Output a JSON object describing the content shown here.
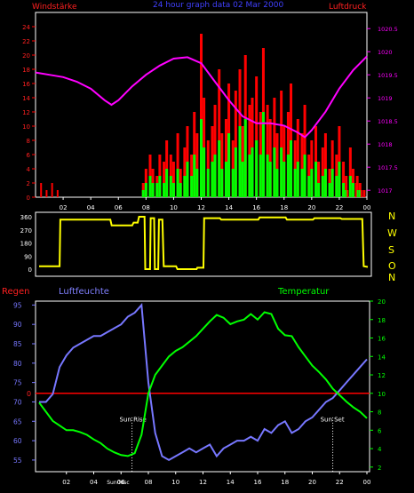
{
  "chart_data": [
    {
      "type": "bar",
      "title": "24 hour graph data  02 Mar 2000",
      "left_axis_label": "Windstärke",
      "right_axis_label": "Luftdruck",
      "x_ticks": [
        "02",
        "04",
        "06",
        "08",
        "10",
        "12",
        "14",
        "16",
        "18",
        "20",
        "22",
        "00"
      ],
      "wind_ylim": [
        0,
        26
      ],
      "wind_yticks": [
        "0",
        "2",
        "4",
        "6",
        "8",
        "10",
        "12",
        "14",
        "16",
        "18",
        "20",
        "22",
        "24"
      ],
      "pressure_ylim": [
        1016.85,
        1020.85
      ],
      "pressure_yticks": [
        "1017",
        "1017.5",
        "1018",
        "1018.5",
        "1019",
        "1019.5",
        "1020",
        "1020.5"
      ],
      "series": [
        {
          "name": "gust",
          "color": "#ff0000",
          "x": [
            7.8,
            8.0,
            8.3,
            8.5,
            8.8,
            9.0,
            9.3,
            9.5,
            9.8,
            10.0,
            10.3,
            10.5,
            10.8,
            11.0,
            11.3,
            11.5,
            11.7,
            12.0,
            12.2,
            12.5,
            12.8,
            13.0,
            13.3,
            13.5,
            13.8,
            14.0,
            14.3,
            14.5,
            14.8,
            15.0,
            15.2,
            15.5,
            15.7,
            16.0,
            16.3,
            16.5,
            16.8,
            17.0,
            17.3,
            17.5,
            17.8,
            18.0,
            18.3,
            18.5,
            18.8,
            19.0,
            19.3,
            19.5,
            19.8,
            20.0,
            20.3,
            20.5,
            20.8,
            21.0,
            21.3,
            21.5,
            21.8,
            22.0,
            22.3,
            22.5,
            22.8,
            23.0,
            23.3,
            23.5,
            23.8
          ],
          "values": [
            2,
            4,
            6,
            4,
            3,
            6,
            5,
            8,
            6,
            5,
            9,
            4,
            7,
            10,
            6,
            12,
            9,
            23,
            14,
            8,
            10,
            13,
            18,
            9,
            11,
            16,
            8,
            15,
            18,
            10,
            20,
            13,
            14,
            17,
            12,
            21,
            13,
            11,
            14,
            9,
            15,
            10,
            12,
            16,
            8,
            11,
            9,
            13,
            6,
            8,
            10,
            5,
            7,
            9,
            4,
            8,
            6,
            10,
            5,
            3,
            7,
            4,
            3,
            2,
            1
          ]
        },
        {
          "name": "average",
          "color": "#00ff00",
          "x": [
            7.8,
            8.0,
            8.3,
            8.5,
            8.8,
            9.0,
            9.3,
            9.5,
            9.8,
            10.0,
            10.3,
            10.5,
            10.8,
            11.0,
            11.3,
            11.5,
            11.7,
            12.0,
            12.2,
            12.5,
            12.8,
            13.0,
            13.3,
            13.5,
            13.8,
            14.0,
            14.3,
            14.5,
            14.8,
            15.0,
            15.2,
            15.5,
            15.7,
            16.0,
            16.3,
            16.5,
            16.8,
            17.0,
            17.3,
            17.5,
            17.8,
            18.0,
            18.3,
            18.5,
            18.8,
            19.0,
            19.3,
            19.5,
            19.8,
            20.0,
            20.3,
            20.5,
            20.8,
            21.0,
            21.3,
            21.5,
            21.8,
            22.0,
            22.3,
            22.5,
            22.8,
            23.0,
            23.3,
            23.5,
            23.8
          ],
          "values": [
            1,
            2,
            3,
            2,
            2,
            3,
            2,
            4,
            3,
            2,
            4,
            2,
            3,
            5,
            3,
            6,
            4,
            11,
            7,
            4,
            5,
            6,
            8,
            4,
            5,
            9,
            4,
            7,
            10,
            5,
            11,
            6,
            7,
            8,
            6,
            12,
            6,
            5,
            7,
            4,
            7,
            5,
            6,
            8,
            4,
            5,
            4,
            6,
            3,
            4,
            5,
            2,
            3,
            4,
            2,
            4,
            3,
            5,
            2,
            1,
            3,
            2,
            1,
            1,
            0
          ]
        },
        {
          "name": "pressure",
          "color": "#ff00ff",
          "x": [
            0,
            1,
            2,
            3,
            4,
            5,
            5.5,
            6,
            7,
            8,
            9,
            10,
            11,
            12,
            13,
            14,
            15,
            16,
            17,
            18,
            19,
            19.5,
            20,
            21,
            22,
            23,
            24
          ],
          "values": [
            1019.55,
            1019.5,
            1019.45,
            1019.35,
            1019.2,
            1018.95,
            1018.85,
            1018.95,
            1019.25,
            1019.5,
            1019.7,
            1019.85,
            1019.88,
            1019.75,
            1019.35,
            1018.95,
            1018.6,
            1018.45,
            1018.45,
            1018.4,
            1018.25,
            1018.15,
            1018.3,
            1018.7,
            1019.2,
            1019.6,
            1019.9
          ]
        }
      ]
    },
    {
      "type": "line",
      "right_labels": [
        "N",
        "W",
        "S",
        "O",
        "N"
      ],
      "ylim": [
        0,
        360
      ],
      "yticks": [
        "0",
        "90",
        "180",
        "270",
        "360"
      ],
      "series": [
        {
          "name": "wind direction",
          "color": "#ffff00",
          "x": [
            0,
            1.5,
            1.55,
            5.2,
            5.3,
            6.8,
            6.9,
            7.2,
            7.3,
            7.7,
            7.75,
            8.1,
            8.15,
            8.4,
            8.45,
            8.7,
            8.75,
            9.0,
            9.1,
            10.0,
            10.1,
            11.5,
            11.55,
            12.0,
            12.05,
            13.2,
            13.3,
            16.0,
            16.1,
            18.0,
            18.1,
            20.0,
            20.1,
            22.0,
            22.1,
            23.6,
            23.7,
            24.0
          ],
          "values": [
            20,
            20,
            340,
            340,
            300,
            300,
            320,
            320,
            360,
            360,
            0,
            0,
            350,
            350,
            0,
            0,
            340,
            340,
            20,
            20,
            0,
            0,
            10,
            10,
            350,
            350,
            340,
            340,
            355,
            355,
            340,
            340,
            350,
            350,
            345,
            345,
            20,
            15
          ]
        }
      ]
    },
    {
      "type": "line",
      "left_axis_label": "Regen",
      "left2_axis_label": "Luftfeuchte",
      "right_axis_label": "Temperatur",
      "x_ticks": [
        "02",
        "04",
        "06",
        "08",
        "10",
        "12",
        "14",
        "16",
        "18",
        "20",
        "22",
        "00"
      ],
      "humidity_ylim": [
        52,
        96
      ],
      "humidity_yticks": [
        "55",
        "60",
        "65",
        "70",
        "75",
        "80",
        "85",
        "90",
        "95"
      ],
      "temperature_ylim": [
        1.5,
        20
      ],
      "temperature_yticks": [
        "2",
        "4",
        "6",
        "8",
        "10",
        "12",
        "14",
        "16",
        "18",
        "20"
      ],
      "rain_value": "0",
      "annotations": [
        {
          "text": "Sun Rise",
          "x": 6.8
        },
        {
          "text": "Sun Set",
          "x": 21.5
        },
        {
          "text": "Sun06sc",
          "x": 6.0
        }
      ],
      "series": [
        {
          "name": "humidity",
          "color": "#7777ff",
          "x": [
            0,
            0.5,
            1,
            1.5,
            2,
            2.5,
            3,
            3.5,
            4,
            4.5,
            5,
            5.5,
            6,
            6.5,
            7,
            7.5,
            8,
            8.5,
            9,
            9.5,
            10,
            10.5,
            11,
            11.5,
            12,
            12.5,
            13,
            13.5,
            14,
            14.5,
            15,
            15.5,
            16,
            16.5,
            17,
            17.5,
            18,
            18.5,
            19,
            19.5,
            20,
            20.5,
            21,
            21.5,
            22,
            22.5,
            23,
            23.5,
            24
          ],
          "values": [
            70,
            70,
            72,
            79,
            82,
            84,
            85,
            86,
            87,
            87,
            88,
            89,
            90,
            92,
            93,
            95,
            75,
            62,
            56,
            55,
            56,
            57,
            58,
            57,
            58,
            59,
            56,
            58,
            59,
            60,
            60,
            61,
            60,
            63,
            62,
            64,
            65,
            62,
            63,
            65,
            66,
            68,
            70,
            71,
            73,
            75,
            77,
            79,
            81
          ]
        },
        {
          "name": "temperature",
          "color": "#00ff00",
          "x": [
            0,
            0.5,
            1,
            1.5,
            2,
            2.5,
            3,
            3.5,
            4,
            4.5,
            5,
            5.5,
            6,
            6.5,
            7,
            7.5,
            8,
            8.5,
            9,
            9.5,
            10,
            10.5,
            11,
            11.5,
            12,
            12.5,
            13,
            13.5,
            14,
            14.5,
            15,
            15.5,
            16,
            16.5,
            17,
            17.5,
            18,
            18.5,
            19,
            19.5,
            20,
            20.5,
            21,
            21.5,
            22,
            22.5,
            23,
            23.5,
            24
          ],
          "values": [
            9,
            8,
            7,
            6.5,
            6,
            6,
            5.8,
            5.5,
            5,
            4.6,
            4,
            3.6,
            3.3,
            3.2,
            3.5,
            5.5,
            10,
            12,
            13,
            14,
            14.6,
            15,
            15.6,
            16.2,
            17,
            17.8,
            18.5,
            18.2,
            17.5,
            17.8,
            18,
            18.6,
            18,
            18.8,
            18.6,
            17,
            16.3,
            16.2,
            15,
            14,
            13,
            12.3,
            11.5,
            10.5,
            9.8,
            9.1,
            8.5,
            8,
            7.3
          ]
        }
      ]
    }
  ]
}
